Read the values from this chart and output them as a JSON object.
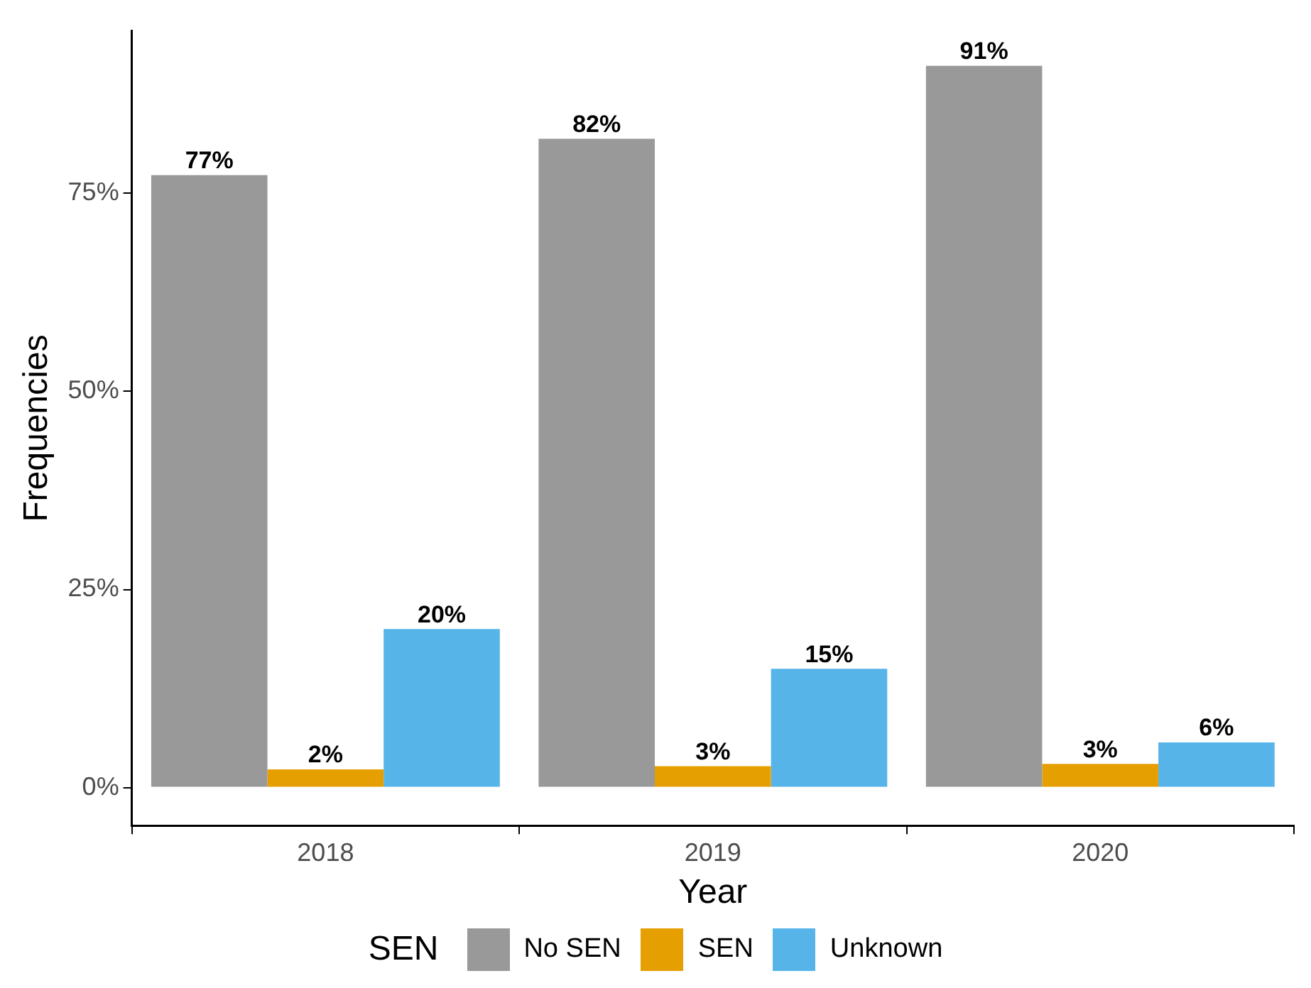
{
  "chart_data": {
    "type": "bar",
    "xlabel": "Year",
    "ylabel": "Frequencies",
    "legend_title": "SEN",
    "categories": [
      "2018",
      "2019",
      "2020"
    ],
    "series": [
      {
        "name": "No SEN",
        "color": "#999999",
        "values": [
          77.3,
          81.9,
          91.1
        ],
        "value_labels": [
          "77%",
          "82%",
          "91%"
        ]
      },
      {
        "name": "SEN",
        "color": "#e69f00",
        "values": [
          2.3,
          2.7,
          3.0
        ],
        "value_labels": [
          "2%",
          "3%",
          "3%"
        ]
      },
      {
        "name": "Unknown",
        "color": "#56b4e9",
        "values": [
          20.0,
          15.0,
          5.7
        ],
        "value_labels": [
          "20%",
          "15%",
          "6%"
        ]
      }
    ],
    "ylim": [
      -4.8,
      95.5
    ],
    "yticks": [
      {
        "value": 0,
        "label": "0%"
      },
      {
        "value": 25,
        "label": "25%"
      },
      {
        "value": 50,
        "label": "50%"
      },
      {
        "value": 75,
        "label": "75%"
      }
    ],
    "grid": false,
    "legend": "bottom"
  }
}
